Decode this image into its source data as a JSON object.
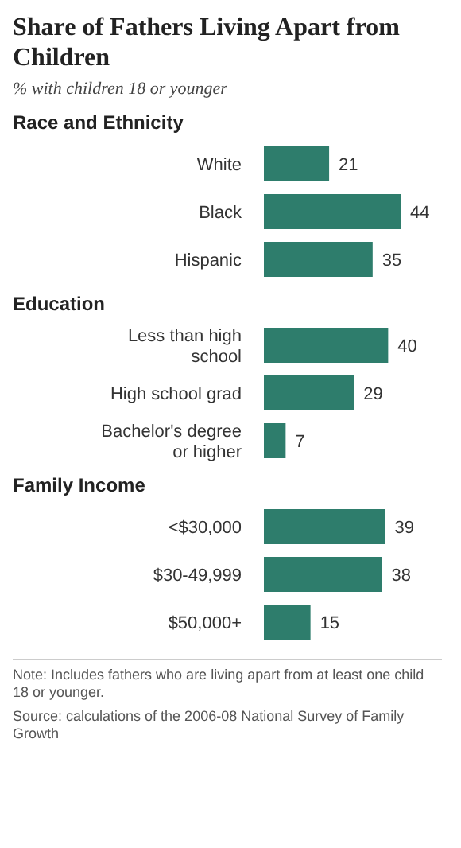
{
  "chart_data": [
    {
      "type": "bar",
      "orientation": "horizontal",
      "title": "Share of Fathers Living Apart from Children",
      "subtitle": "% with children 18 or younger",
      "ylabel": "Race and Ethnicity",
      "categories": [
        "White",
        "Black",
        "Hispanic"
      ],
      "values": [
        21,
        44,
        35
      ],
      "color": "#2e7d6c",
      "grid": false,
      "legend": false,
      "tick_labels": "y",
      "data_labels": true
    },
    {
      "type": "bar",
      "orientation": "horizontal",
      "ylabel": "Education",
      "categories": [
        "Less than high school",
        "High school grad",
        "Bachelor's degree or higher"
      ],
      "values": [
        40,
        29,
        7
      ],
      "color": "#2e7d6c",
      "grid": false,
      "legend": false,
      "tick_labels": "y",
      "data_labels": true
    },
    {
      "type": "bar",
      "orientation": "horizontal",
      "ylabel": "Family Income",
      "categories": [
        "<$30,000",
        "$30-49,999",
        "$50,000+"
      ],
      "values": [
        39,
        38,
        15
      ],
      "color": "#2e7d6c",
      "grid": false,
      "legend": false,
      "tick_labels": "y",
      "data_labels": true,
      "annotations": [
        "Note: Includes fathers who are living apart from at least one child 18 or younger.",
        "Source: calculations of the 2006-08 National Survey of Family Growth"
      ]
    }
  ]
}
